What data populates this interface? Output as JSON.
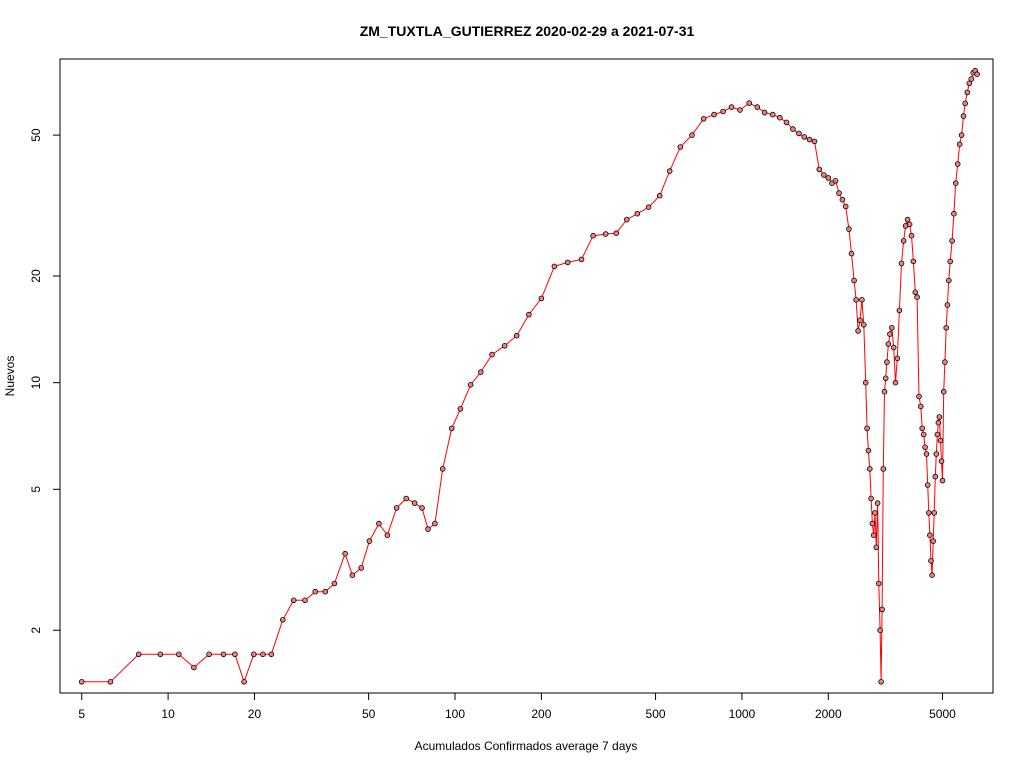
{
  "chart_data": {
    "type": "line",
    "title": "ZM_TUXTLA_GUTIERREZ 2020-02-29 a 2021-07-31",
    "xlabel": "Acumulados Confirmados average  7  days",
    "ylabel": "Nuevos",
    "x_scale": "log",
    "y_scale": "log",
    "xlim": [
      4.2,
      7500
    ],
    "ylim": [
      1.33,
      82
    ],
    "x_ticks": [
      5,
      10,
      20,
      50,
      100,
      200,
      500,
      1000,
      2000,
      5000
    ],
    "x_tick_labels": [
      "5",
      "10",
      "20",
      "50",
      "100",
      "200",
      "500",
      "1000",
      "2000",
      "5000"
    ],
    "y_ticks": [
      2,
      5,
      10,
      20,
      50
    ],
    "y_tick_labels": [
      "2",
      "5",
      "10",
      "20",
      "50"
    ],
    "grid": false,
    "line_color": "#ff0000",
    "marker": "open-circle",
    "marker_color": "#000000",
    "marker_fill": "#f08080",
    "series": [
      {
        "points": [
          [
            5,
            1.43
          ],
          [
            6.3,
            1.43
          ],
          [
            7.9,
            1.71
          ],
          [
            9.4,
            1.71
          ],
          [
            10.9,
            1.71
          ],
          [
            12.3,
            1.57
          ],
          [
            13.9,
            1.71
          ],
          [
            15.6,
            1.71
          ],
          [
            17.1,
            1.71
          ],
          [
            18.4,
            1.43
          ],
          [
            19.9,
            1.71
          ],
          [
            21.4,
            1.71
          ],
          [
            22.9,
            1.71
          ],
          [
            25.1,
            2.14
          ],
          [
            27.4,
            2.43
          ],
          [
            30,
            2.43
          ],
          [
            32.6,
            2.57
          ],
          [
            35.3,
            2.57
          ],
          [
            38,
            2.71
          ],
          [
            41.4,
            3.29
          ],
          [
            43.9,
            2.86
          ],
          [
            47.1,
            3.0
          ],
          [
            50.3,
            3.57
          ],
          [
            54.3,
            4.0
          ],
          [
            58.1,
            3.71
          ],
          [
            62.6,
            4.43
          ],
          [
            67.6,
            4.71
          ],
          [
            72.3,
            4.57
          ],
          [
            76.7,
            4.43
          ],
          [
            80.5,
            3.86
          ],
          [
            85.1,
            4.0
          ],
          [
            90.6,
            5.71
          ],
          [
            97.4,
            7.43
          ],
          [
            104.4,
            8.43
          ],
          [
            113.3,
            9.86
          ],
          [
            123,
            10.71
          ],
          [
            134.6,
            12.0
          ],
          [
            149,
            12.71
          ],
          [
            164,
            13.57
          ],
          [
            181,
            15.57
          ],
          [
            200,
            17.29
          ],
          [
            222,
            21.29
          ],
          [
            247,
            21.86
          ],
          [
            276,
            22.29
          ],
          [
            303,
            26.0
          ],
          [
            335,
            26.29
          ],
          [
            365,
            26.43
          ],
          [
            397,
            28.86
          ],
          [
            432,
            30.0
          ],
          [
            473,
            31.29
          ],
          [
            517,
            33.71
          ],
          [
            560,
            39.57
          ],
          [
            610,
            46.29
          ],
          [
            670,
            50.0
          ],
          [
            735,
            55.57
          ],
          [
            800,
            57.14
          ],
          [
            860,
            58.29
          ],
          [
            920,
            60.0
          ],
          [
            985,
            58.86
          ],
          [
            1060,
            61.57
          ],
          [
            1130,
            60.0
          ],
          [
            1200,
            57.86
          ],
          [
            1280,
            57.14
          ],
          [
            1355,
            56.0
          ],
          [
            1430,
            54.29
          ],
          [
            1505,
            52.0
          ],
          [
            1580,
            50.57
          ],
          [
            1650,
            49.43
          ],
          [
            1720,
            48.57
          ],
          [
            1790,
            48.0
          ],
          [
            1860,
            40.0
          ],
          [
            1930,
            38.57
          ],
          [
            2000,
            37.86
          ],
          [
            2060,
            36.57
          ],
          [
            2120,
            37.14
          ],
          [
            2180,
            34.29
          ],
          [
            2240,
            32.86
          ],
          [
            2300,
            31.43
          ],
          [
            2360,
            27.14
          ],
          [
            2410,
            23.14
          ],
          [
            2460,
            19.43
          ],
          [
            2500,
            17.14
          ],
          [
            2540,
            14.0
          ],
          [
            2580,
            15.0
          ],
          [
            2620,
            17.14
          ],
          [
            2660,
            14.57
          ],
          [
            2700,
            10.0
          ],
          [
            2730,
            7.43
          ],
          [
            2760,
            6.43
          ],
          [
            2790,
            5.71
          ],
          [
            2820,
            4.71
          ],
          [
            2850,
            4.0
          ],
          [
            2880,
            3.71
          ],
          [
            2910,
            4.29
          ],
          [
            2940,
            3.43
          ],
          [
            2970,
            4.57
          ],
          [
            3000,
            2.71
          ],
          [
            3030,
            2.0
          ],
          [
            3055,
            1.43
          ],
          [
            3080,
            2.29
          ],
          [
            3110,
            5.71
          ],
          [
            3140,
            9.43
          ],
          [
            3170,
            10.29
          ],
          [
            3200,
            11.43
          ],
          [
            3240,
            12.86
          ],
          [
            3280,
            13.71
          ],
          [
            3330,
            14.29
          ],
          [
            3380,
            12.57
          ],
          [
            3430,
            10.0
          ],
          [
            3480,
            11.71
          ],
          [
            3540,
            16.0
          ],
          [
            3600,
            21.71
          ],
          [
            3660,
            25.14
          ],
          [
            3720,
            27.71
          ],
          [
            3780,
            28.86
          ],
          [
            3840,
            28.0
          ],
          [
            3900,
            26.0
          ],
          [
            3960,
            22.0
          ],
          [
            4020,
            18.0
          ],
          [
            4080,
            17.43
          ],
          [
            4140,
            9.14
          ],
          [
            4200,
            8.57
          ],
          [
            4250,
            7.43
          ],
          [
            4300,
            7.14
          ],
          [
            4350,
            6.57
          ],
          [
            4400,
            6.29
          ],
          [
            4440,
            5.14
          ],
          [
            4480,
            4.29
          ],
          [
            4520,
            3.71
          ],
          [
            4560,
            3.14
          ],
          [
            4600,
            2.86
          ],
          [
            4640,
            3.57
          ],
          [
            4680,
            4.29
          ],
          [
            4720,
            5.43
          ],
          [
            4760,
            6.29
          ],
          [
            4800,
            7.14
          ],
          [
            4840,
            7.71
          ],
          [
            4880,
            8.0
          ],
          [
            4920,
            6.86
          ],
          [
            4960,
            6.0
          ],
          [
            5000,
            5.29
          ],
          [
            5050,
            9.43
          ],
          [
            5100,
            11.43
          ],
          [
            5150,
            14.29
          ],
          [
            5200,
            16.57
          ],
          [
            5260,
            19.43
          ],
          [
            5320,
            22.0
          ],
          [
            5400,
            25.14
          ],
          [
            5480,
            30.0
          ],
          [
            5560,
            36.57
          ],
          [
            5650,
            41.43
          ],
          [
            5740,
            47.14
          ],
          [
            5830,
            50.0
          ],
          [
            5920,
            56.57
          ],
          [
            6000,
            61.43
          ],
          [
            6100,
            66.0
          ],
          [
            6200,
            70.0
          ],
          [
            6300,
            72.0
          ],
          [
            6400,
            75.0
          ],
          [
            6500,
            76.0
          ],
          [
            6600,
            74.29
          ]
        ]
      }
    ]
  }
}
